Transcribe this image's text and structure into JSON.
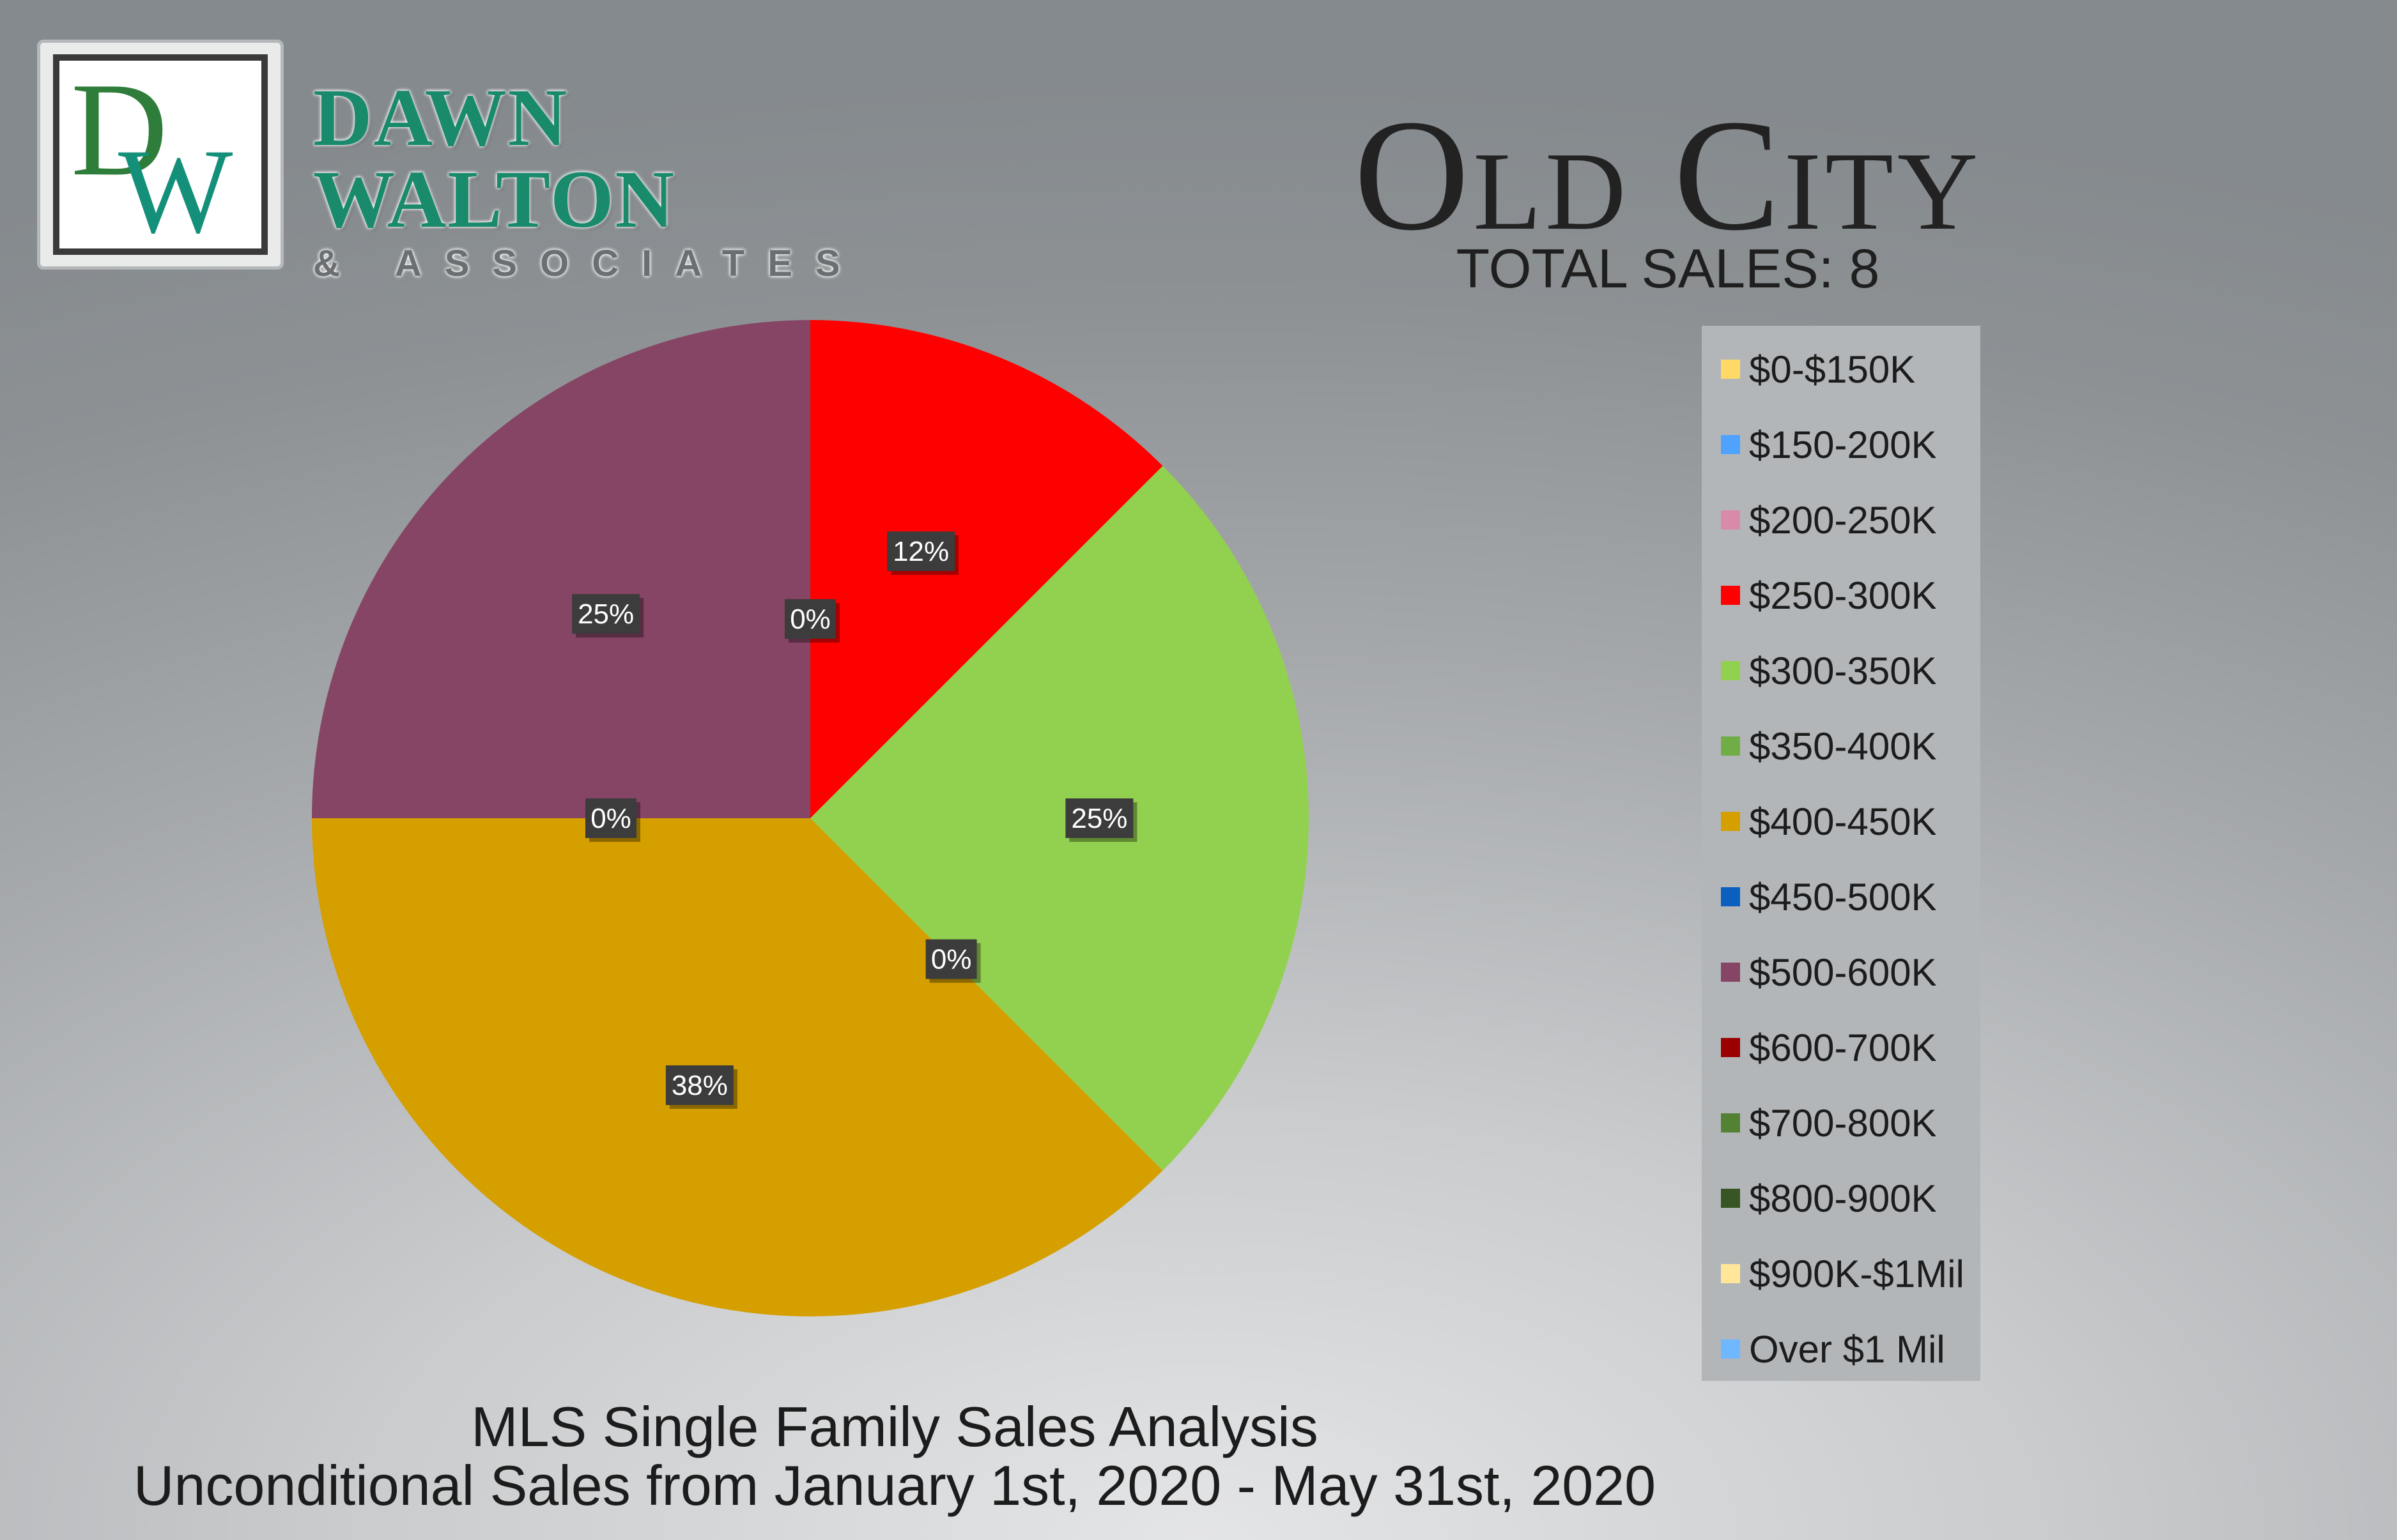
{
  "brand": {
    "logo_letters": "DW",
    "name": "DAWN WALTON",
    "tagline": "& ASSOCIATES",
    "colors": {
      "green": "#1a8a6d",
      "dark": "#3a3a3a"
    }
  },
  "header": {
    "title": "Old City",
    "subtitle": "TOTAL SALES: 8"
  },
  "chart_data": {
    "type": "pie",
    "title": "Old City",
    "subtitle": "TOTAL SALES: 8",
    "total_sales": 8,
    "legend_position": "right",
    "start_angle_deg": 0,
    "direction": "clockwise",
    "categories": [
      "$0-$150K",
      "$150-200K",
      "$200-250K",
      "$250-300K",
      "$300-350K",
      "$350-400K",
      "$400-450K",
      "$450-500K",
      "$500-600K",
      "$600-700K",
      "$700-800K",
      "$800-900K",
      "$900K-$1Mil",
      "Over $1 Mil"
    ],
    "values": [
      0,
      0,
      0,
      1,
      2,
      0,
      3,
      0,
      2,
      0,
      0,
      0,
      0,
      0
    ],
    "colors": [
      "#ffd966",
      "#4fa3ff",
      "#d98aa8",
      "#ff0000",
      "#92d050",
      "#70ad47",
      "#d59f00",
      "#0b5fbf",
      "#864564",
      "#9a0000",
      "#548235",
      "#375623",
      "#ffe699",
      "#6fb7ff"
    ],
    "data_labels": [
      {
        "text": "0%",
        "slice": "$0-$150K"
      },
      {
        "text": "12%",
        "slice": "$250-300K"
      },
      {
        "text": "25%",
        "slice": "$300-350K"
      },
      {
        "text": "0%",
        "slice": "$350-400K"
      },
      {
        "text": "38%",
        "slice": "$400-450K"
      },
      {
        "text": "0%",
        "slice": "$450-500K"
      },
      {
        "text": "25%",
        "slice": "$500-600K"
      }
    ]
  },
  "footer": {
    "line1": "MLS Single Family Sales Analysis",
    "line2": "Unconditional Sales from January 1st, 2020 - May 31st, 2020"
  }
}
